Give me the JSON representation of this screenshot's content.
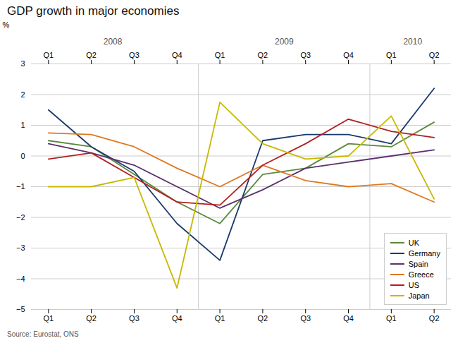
{
  "chart_data": {
    "type": "line",
    "title": "GDP growth in major economies",
    "y_label": "%",
    "source": "Source: Eurostat, ONS",
    "categories": [
      "Q1",
      "Q2",
      "Q3",
      "Q4",
      "Q1",
      "Q2",
      "Q3",
      "Q4",
      "Q1",
      "Q2"
    ],
    "annotations": [
      "2008",
      "2009",
      "2010"
    ],
    "series": [
      {
        "name": "UK",
        "color": "#5a8a3c",
        "values": [
          0.5,
          0.3,
          -0.6,
          -1.5,
          -2.2,
          -0.6,
          -0.4,
          0.4,
          0.3,
          1.1
        ]
      },
      {
        "name": "Germany",
        "color": "#1a3a6b",
        "values": [
          1.5,
          0.3,
          -0.5,
          -2.2,
          -3.4,
          0.5,
          0.7,
          0.7,
          0.4,
          2.2
        ]
      },
      {
        "name": "Spain",
        "color": "#5c3070",
        "values": [
          0.4,
          0.1,
          -0.3,
          -1.0,
          -1.7,
          -1.1,
          -0.4,
          -0.2,
          0.0,
          0.2
        ]
      },
      {
        "name": "Greece",
        "color": "#e07820",
        "values": [
          0.75,
          0.7,
          0.3,
          -0.4,
          -1.0,
          -0.3,
          -0.8,
          -1.0,
          -0.9,
          -1.5
        ]
      },
      {
        "name": "US",
        "color": "#b02020",
        "values": [
          -0.1,
          0.1,
          -0.7,
          -1.5,
          -1.6,
          -0.3,
          0.4,
          1.2,
          0.8,
          0.6
        ]
      },
      {
        "name": "Japan",
        "color": "#c8b800",
        "values": [
          -1.0,
          -1.0,
          -0.7,
          -4.3,
          1.75,
          0.4,
          -0.1,
          0.0,
          1.3,
          -1.4
        ]
      }
    ],
    "ylim": [
      -5,
      3
    ],
    "yticks": [
      -5,
      -4,
      -3,
      -2,
      -1,
      0,
      1,
      2,
      3
    ],
    "grid": true,
    "legend": "lower right"
  }
}
